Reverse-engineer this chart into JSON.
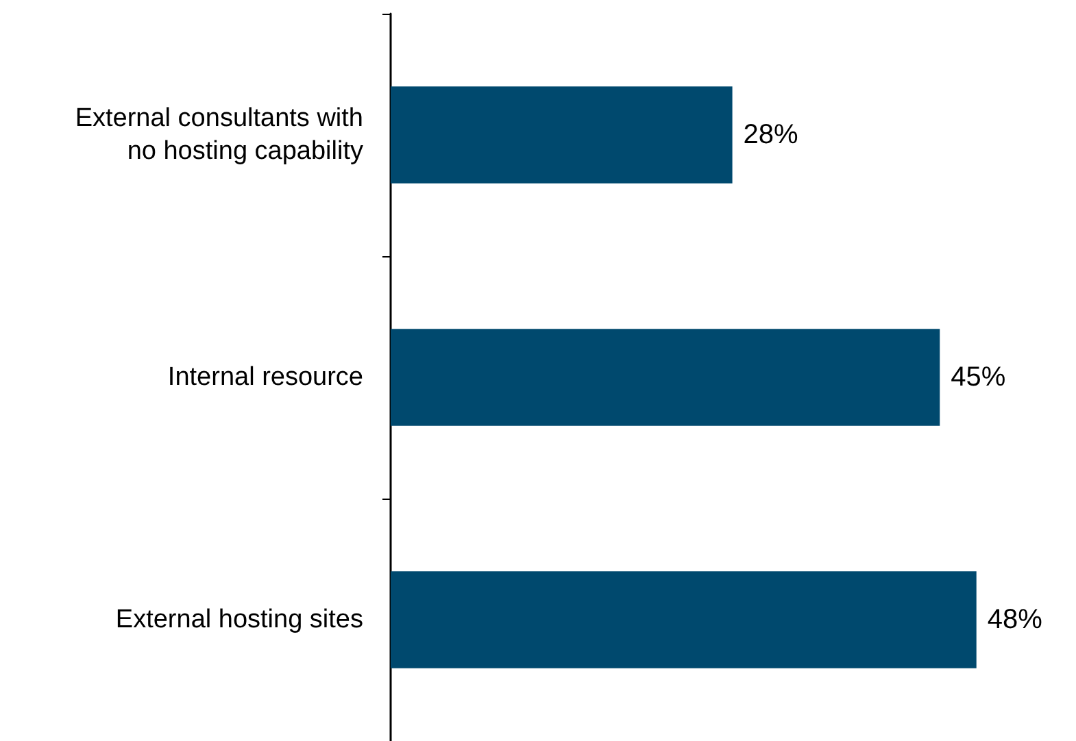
{
  "chart_data": {
    "type": "bar",
    "orientation": "horizontal",
    "categories": [
      "External consultants with\nno hosting capability",
      "Internal resource",
      "External hosting sites"
    ],
    "values": [
      28,
      45,
      48
    ],
    "color": "#00496e",
    "value_labels": [
      "28%",
      "45%",
      "48%"
    ]
  }
}
